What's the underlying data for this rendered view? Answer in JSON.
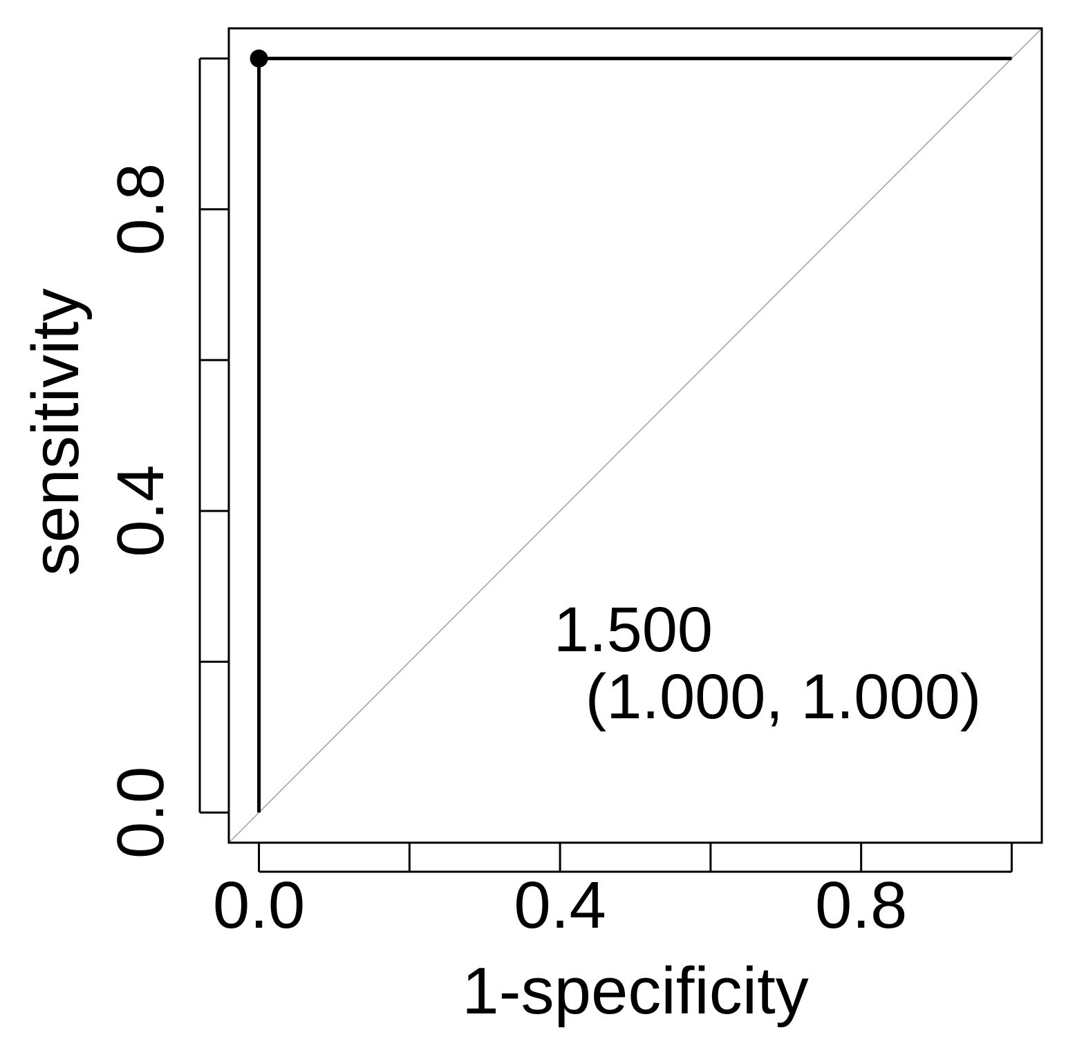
{
  "chart_data": {
    "type": "line",
    "xlabel": "1-specificity",
    "ylabel": "sensitivity",
    "xlim": [
      -0.04,
      1.04
    ],
    "ylim": [
      -0.04,
      1.04
    ],
    "x_ticks": [
      0,
      0.2,
      0.4,
      0.6,
      0.8,
      1.0
    ],
    "y_ticks": [
      0,
      0.2,
      0.4,
      0.6,
      0.8,
      1.0
    ],
    "x_tick_labels": [
      {
        "value": 0,
        "label": "0.0"
      },
      {
        "value": 0.4,
        "label": "0.4"
      },
      {
        "value": 0.8,
        "label": "0.8"
      }
    ],
    "y_tick_labels": [
      {
        "value": 0,
        "label": "0.0"
      },
      {
        "value": 0.4,
        "label": "0.4"
      },
      {
        "value": 0.8,
        "label": "0.8"
      }
    ],
    "series": [
      {
        "x": [
          0,
          0,
          1
        ],
        "y": [
          0,
          1,
          1
        ],
        "color": "#000000"
      }
    ],
    "reference_line": {
      "x": [
        -0.04,
        1.04
      ],
      "y": [
        -0.04,
        1.04
      ],
      "color": "#a0a0a0"
    },
    "points": [
      {
        "x": 0,
        "y": 1
      }
    ],
    "annotation": {
      "line1": "1.500",
      "line2": "(1.000, 1.000)",
      "x": 0.4,
      "y": 0.25
    },
    "grid": false
  }
}
